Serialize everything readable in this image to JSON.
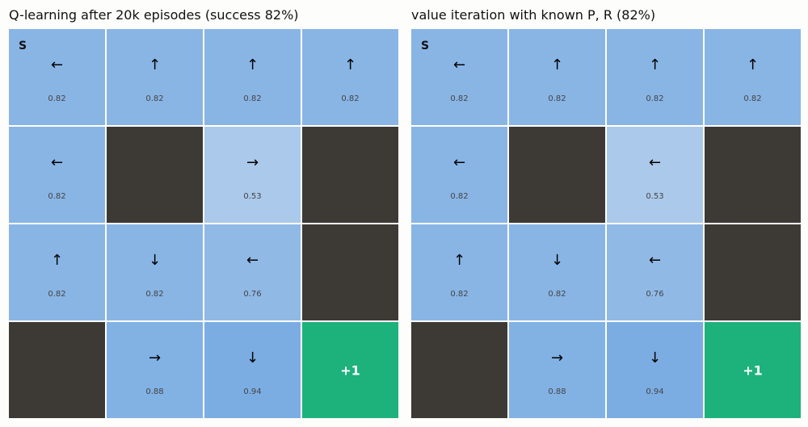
{
  "colors": {
    "wall": "#3d3a36",
    "goal": "#1db17b",
    "value_high": "#7aace3",
    "value_low": "#aecbea"
  },
  "panels": [
    {
      "title": "Q-learning after 20k episodes (success 82%)",
      "cells": [
        {
          "type": "state",
          "start": "S",
          "arrow": "←",
          "value": "0.82"
        },
        {
          "type": "state",
          "arrow": "↑",
          "value": "0.82"
        },
        {
          "type": "state",
          "arrow": "↑",
          "value": "0.82"
        },
        {
          "type": "state",
          "arrow": "↑",
          "value": "0.82"
        },
        {
          "type": "state",
          "arrow": "←",
          "value": "0.82"
        },
        {
          "type": "wall"
        },
        {
          "type": "state",
          "arrow": "→",
          "value": "0.53"
        },
        {
          "type": "wall"
        },
        {
          "type": "state",
          "arrow": "↑",
          "value": "0.82"
        },
        {
          "type": "state",
          "arrow": "↓",
          "value": "0.82"
        },
        {
          "type": "state",
          "arrow": "←",
          "value": "0.76"
        },
        {
          "type": "wall"
        },
        {
          "type": "wall"
        },
        {
          "type": "state",
          "arrow": "→",
          "value": "0.88"
        },
        {
          "type": "state",
          "arrow": "↓",
          "value": "0.94"
        },
        {
          "type": "goal",
          "label": "+1"
        }
      ]
    },
    {
      "title": "value iteration with known P, R (82%)",
      "cells": [
        {
          "type": "state",
          "start": "S",
          "arrow": "←",
          "value": "0.82"
        },
        {
          "type": "state",
          "arrow": "↑",
          "value": "0.82"
        },
        {
          "type": "state",
          "arrow": "↑",
          "value": "0.82"
        },
        {
          "type": "state",
          "arrow": "↑",
          "value": "0.82"
        },
        {
          "type": "state",
          "arrow": "←",
          "value": "0.82"
        },
        {
          "type": "wall"
        },
        {
          "type": "state",
          "arrow": "←",
          "value": "0.53"
        },
        {
          "type": "wall"
        },
        {
          "type": "state",
          "arrow": "↑",
          "value": "0.82"
        },
        {
          "type": "state",
          "arrow": "↓",
          "value": "0.82"
        },
        {
          "type": "state",
          "arrow": "←",
          "value": "0.76"
        },
        {
          "type": "wall"
        },
        {
          "type": "wall"
        },
        {
          "type": "state",
          "arrow": "→",
          "value": "0.88"
        },
        {
          "type": "state",
          "arrow": "↓",
          "value": "0.94"
        },
        {
          "type": "goal",
          "label": "+1"
        }
      ]
    }
  ]
}
